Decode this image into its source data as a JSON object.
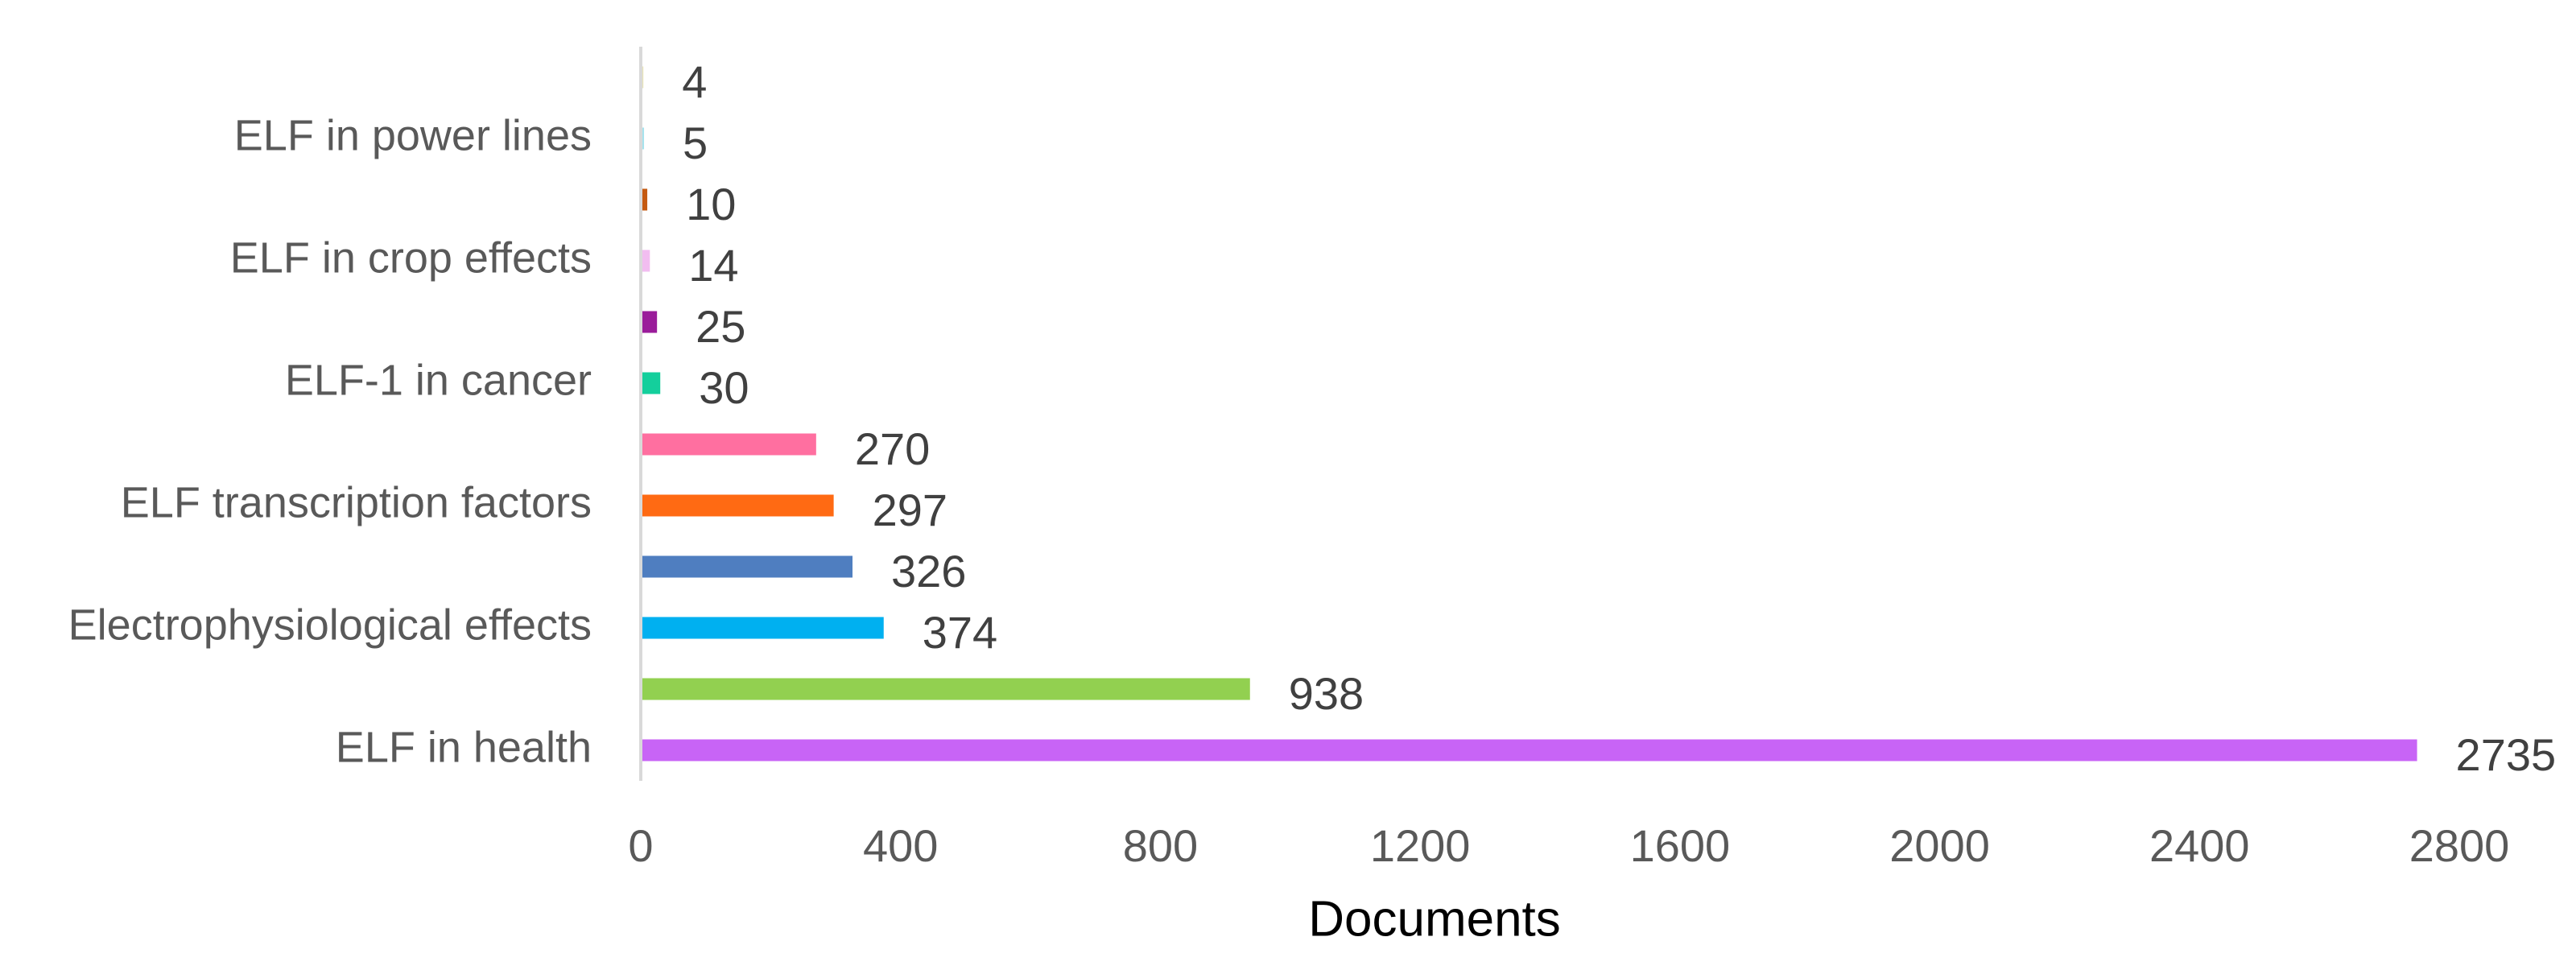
{
  "chart_data": {
    "type": "hbar",
    "categories": [
      null,
      "ELF in power lines",
      null,
      "ELF in crop effects",
      null,
      "ELF-1 in cancer",
      null,
      "ELF transcription factors",
      null,
      "Electrophysiological effects",
      null,
      "ELF in health"
    ],
    "values": [
      4,
      5,
      10,
      14,
      25,
      30,
      270,
      297,
      326,
      374,
      938,
      2735
    ],
    "colors": [
      "#e8e4b8",
      "#a6e3ee",
      "#c55a11",
      "#f2bdf0",
      "#9a1c9a",
      "#14cf9c",
      "#ff6fa0",
      "#ff6a13",
      "#4f7ec0",
      "#00b0f0",
      "#92d050",
      "#c864f6"
    ],
    "xlim": [
      0,
      2800
    ],
    "xticks": [
      0,
      400,
      800,
      1200,
      1600,
      2000,
      2400,
      2800
    ],
    "x_label": "Documents",
    "grid": false
  }
}
